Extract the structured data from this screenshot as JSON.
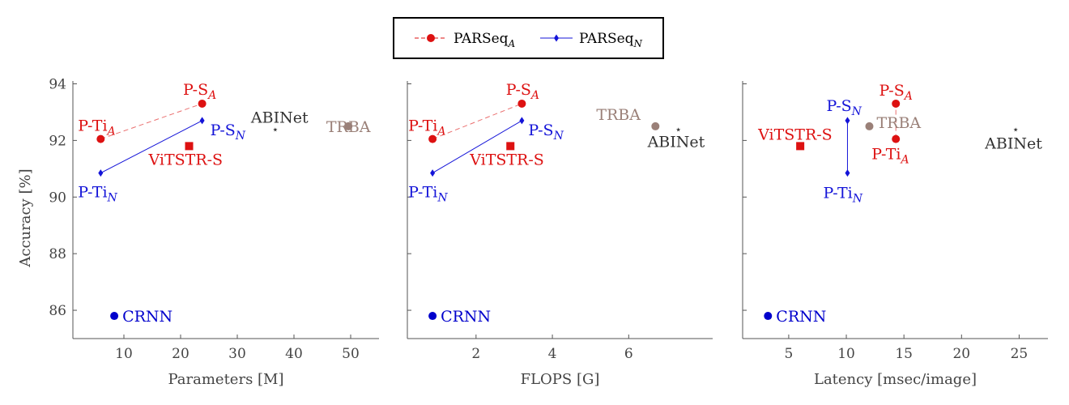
{
  "legend": {
    "items": [
      {
        "base": "PARSeq",
        "sub": "A",
        "color": "#dd1111",
        "dash": true,
        "marker": "circle"
      },
      {
        "base": "PARSeq",
        "sub": "N",
        "color": "#1414d8",
        "dash": false,
        "marker": "diamond"
      }
    ]
  },
  "colors": {
    "parseq_a": "#dd1111",
    "parseq_n": "#1414d8",
    "vitstr": "#dd1111",
    "crnn": "#0000cc",
    "trba": "#9a8078",
    "abinet": "#333333",
    "axis": "#555555"
  },
  "chart_data": [
    {
      "type": "scatter",
      "xlabel": "Parameters [M]",
      "ylabel": "Accuracy [%]",
      "xlim": [
        1,
        55
      ],
      "ylim": [
        85,
        94.1
      ],
      "xticks": [
        10,
        20,
        30,
        40,
        50
      ],
      "yticks": [
        86,
        88,
        90,
        92,
        94
      ],
      "points": [
        {
          "id": "p-ti-a",
          "base": "P-Ti",
          "sub": "A",
          "x": 5.9,
          "y": 92.05,
          "marker": "circle",
          "color": "#dd1111"
        },
        {
          "id": "p-s-a",
          "base": "P-S",
          "sub": "A",
          "x": 23.8,
          "y": 93.3,
          "marker": "circle",
          "color": "#dd1111"
        },
        {
          "id": "p-ti-n",
          "base": "P-Ti",
          "sub": "N",
          "x": 5.9,
          "y": 90.85,
          "marker": "diamond",
          "color": "#1414d8"
        },
        {
          "id": "p-s-n",
          "base": "P-S",
          "sub": "N",
          "x": 23.8,
          "y": 92.7,
          "marker": "diamond",
          "color": "#1414d8"
        },
        {
          "id": "vitstr-s",
          "base": "ViTSTR-S",
          "sub": "",
          "x": 21.5,
          "y": 91.8,
          "marker": "square",
          "color": "#dd1111"
        },
        {
          "id": "crnn",
          "base": "CRNN",
          "sub": "",
          "x": 8.3,
          "y": 85.8,
          "marker": "circle",
          "color": "#0000cc"
        },
        {
          "id": "trba",
          "base": "TRBA",
          "sub": "",
          "x": 49.6,
          "y": 92.5,
          "marker": "circle",
          "color": "#9a8078"
        },
        {
          "id": "abinet",
          "base": "ABINet",
          "sub": "",
          "x": 36.7,
          "y": 92.4,
          "marker": "star",
          "color": "#333333"
        }
      ]
    },
    {
      "type": "scatter",
      "xlabel": "FLOPS [G]",
      "ylabel": "",
      "xlim": [
        0.2,
        8.2
      ],
      "ylim": [
        85,
        94.1
      ],
      "xticks": [
        2,
        4,
        6
      ],
      "yticks": [
        86,
        88,
        90,
        92,
        94
      ],
      "points": [
        {
          "id": "p-ti-a",
          "base": "P-Ti",
          "sub": "A",
          "x": 0.86,
          "y": 92.05,
          "marker": "circle",
          "color": "#dd1111"
        },
        {
          "id": "p-s-a",
          "base": "P-S",
          "sub": "A",
          "x": 3.2,
          "y": 93.3,
          "marker": "circle",
          "color": "#dd1111"
        },
        {
          "id": "p-ti-n",
          "base": "P-Ti",
          "sub": "N",
          "x": 0.86,
          "y": 90.85,
          "marker": "diamond",
          "color": "#1414d8"
        },
        {
          "id": "p-s-n",
          "base": "P-S",
          "sub": "N",
          "x": 3.2,
          "y": 92.7,
          "marker": "diamond",
          "color": "#1414d8"
        },
        {
          "id": "vitstr-s",
          "base": "ViTSTR-S",
          "sub": "",
          "x": 2.9,
          "y": 91.8,
          "marker": "square",
          "color": "#dd1111"
        },
        {
          "id": "crnn",
          "base": "CRNN",
          "sub": "",
          "x": 0.86,
          "y": 85.8,
          "marker": "circle",
          "color": "#0000cc"
        },
        {
          "id": "trba",
          "base": "TRBA",
          "sub": "",
          "x": 6.7,
          "y": 92.5,
          "marker": "circle",
          "color": "#9a8078"
        },
        {
          "id": "abinet",
          "base": "ABINet",
          "sub": "",
          "x": 7.3,
          "y": 92.4,
          "marker": "star",
          "color": "#333333"
        }
      ]
    },
    {
      "type": "scatter",
      "xlabel": "Latency [msec/image]",
      "ylabel": "",
      "xlim": [
        1,
        27.5
      ],
      "ylim": [
        85,
        94.1
      ],
      "xticks": [
        5,
        10,
        15,
        20,
        25
      ],
      "yticks": [
        86,
        88,
        90,
        92,
        94
      ],
      "points": [
        {
          "id": "p-ti-a",
          "base": "P-Ti",
          "sub": "A",
          "x": 14.3,
          "y": 92.05,
          "marker": "circle",
          "color": "#dd1111"
        },
        {
          "id": "p-s-a",
          "base": "P-S",
          "sub": "A",
          "x": 14.3,
          "y": 93.3,
          "marker": "circle",
          "color": "#dd1111"
        },
        {
          "id": "p-ti-n",
          "base": "P-Ti",
          "sub": "N",
          "x": 10.1,
          "y": 90.85,
          "marker": "diamond",
          "color": "#1414d8"
        },
        {
          "id": "p-s-n",
          "base": "P-S",
          "sub": "N",
          "x": 10.1,
          "y": 92.7,
          "marker": "diamond",
          "color": "#1414d8"
        },
        {
          "id": "vitstr-s",
          "base": "ViTSTR-S",
          "sub": "",
          "x": 6.0,
          "y": 91.8,
          "marker": "square",
          "color": "#dd1111"
        },
        {
          "id": "crnn",
          "base": "CRNN",
          "sub": "",
          "x": 3.2,
          "y": 85.8,
          "marker": "circle",
          "color": "#0000cc"
        },
        {
          "id": "trba",
          "base": "TRBA",
          "sub": "",
          "x": 12.0,
          "y": 92.5,
          "marker": "circle",
          "color": "#9a8078"
        },
        {
          "id": "abinet",
          "base": "ABINet",
          "sub": "",
          "x": 24.7,
          "y": 92.4,
          "marker": "star",
          "color": "#333333"
        }
      ]
    }
  ]
}
